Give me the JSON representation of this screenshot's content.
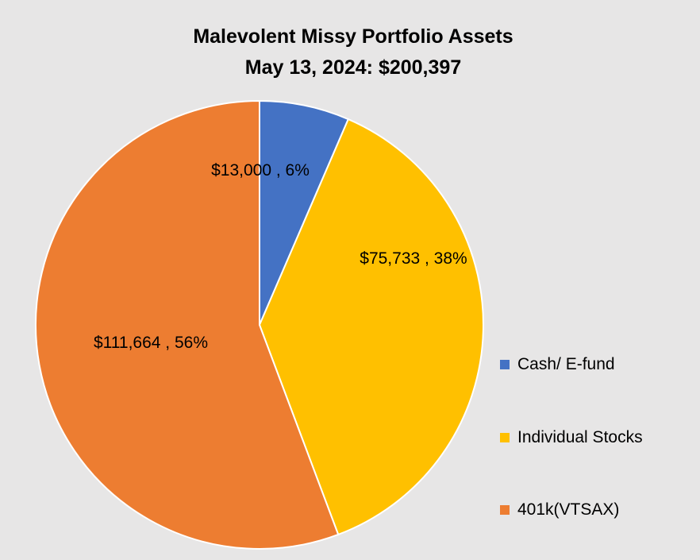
{
  "chart_data": {
    "type": "pie",
    "title": "Malevolent Missy Portfolio Assets",
    "subtitle": "May 13, 2024:  $200,397",
    "categories": [
      "Cash/ E-fund",
      "Individual Stocks",
      "401k(VTSAX)"
    ],
    "values": [
      13000,
      75733,
      111664
    ],
    "percent_labels": [
      "6%",
      "38%",
      "56%"
    ],
    "data_labels": [
      "$13,000 , 6%",
      "$75,733 , 38%",
      "$111,664 , 56%"
    ],
    "colors": [
      "#4472c4",
      "#ffc000",
      "#ed7d31"
    ],
    "legend": {
      "position": "right",
      "entries": [
        "Cash/ E-fund",
        "Individual Stocks",
        "401k(VTSAX)"
      ]
    }
  },
  "background_color": "#e7e6e6"
}
